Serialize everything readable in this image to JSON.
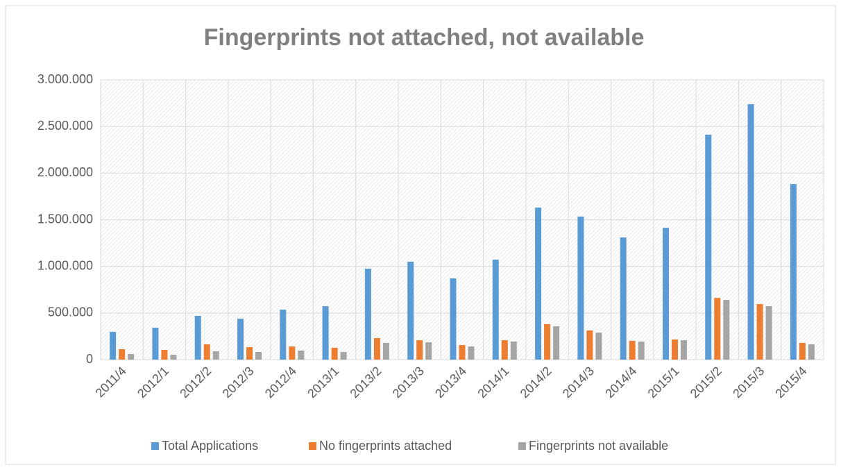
{
  "chart_data": {
    "type": "bar",
    "title": "Fingerprints not attached, not available",
    "categories": [
      "2011/4",
      "2012/1",
      "2012/2",
      "2012/3",
      "2012/4",
      "2013/1",
      "2013/2",
      "2013/3",
      "2013/4",
      "2014/1",
      "2014/2",
      "2014/3",
      "2014/4",
      "2015/1",
      "2015/2",
      "2015/3",
      "2015/4"
    ],
    "series": [
      {
        "name": "Total Applications",
        "color": "#5b9bd5",
        "values": [
          298000,
          342000,
          469000,
          439000,
          536000,
          573000,
          975000,
          1050000,
          871000,
          1072000,
          1630000,
          1534000,
          1310000,
          1414000,
          2412000,
          2739000,
          1883000
        ]
      },
      {
        "name": "No fingerprints attached",
        "color": "#ed7d31",
        "values": [
          112000,
          104000,
          164000,
          134000,
          141000,
          127000,
          231000,
          208000,
          156000,
          208000,
          380000,
          313000,
          201000,
          216000,
          662000,
          596000,
          179000
        ]
      },
      {
        "name": "Fingerprints not available",
        "color": "#a5a5a5",
        "values": [
          60000,
          52000,
          89000,
          82000,
          97000,
          82000,
          179000,
          186000,
          141000,
          194000,
          357000,
          290000,
          194000,
          208000,
          640000,
          573000,
          164000
        ]
      }
    ],
    "ylim": [
      0,
      3000000
    ],
    "yticks": [
      0,
      {
        "value": 500000,
        "label": "500.000"
      },
      {
        "value": 1000000,
        "label": "1.000.000"
      },
      {
        "value": 1500000,
        "label": "1.500.000"
      },
      {
        "value": 2000000,
        "label": "2.000.000"
      },
      {
        "value": 2500000,
        "label": "2.500.000"
      },
      {
        "value": 3000000,
        "label": "3.000.000"
      }
    ],
    "grid": true,
    "legend": "bottom"
  }
}
